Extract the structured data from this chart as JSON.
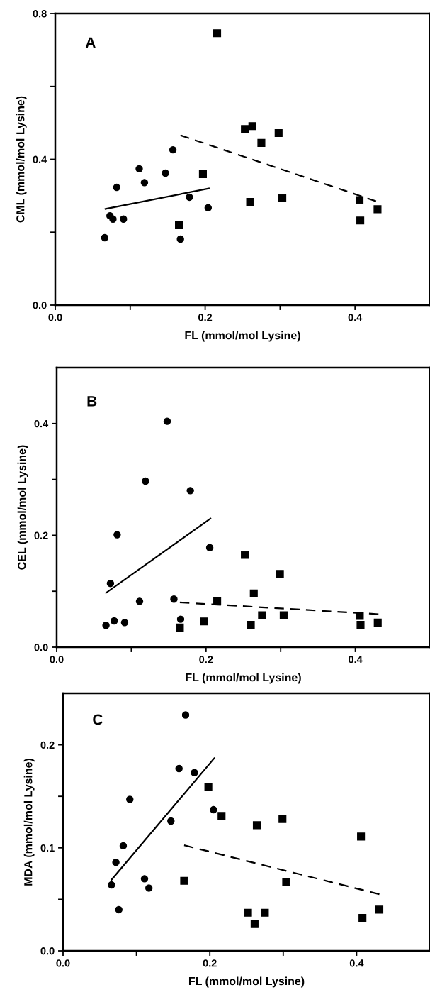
{
  "chart_data": [
    {
      "type": "scatter",
      "annotations": [
        "A"
      ],
      "xlabel": "FL (mmol/mol Lysine)",
      "ylabel": "CML (mmol/mol Lysine)",
      "xlim": [
        0,
        0.5
      ],
      "ylim": [
        0,
        0.8
      ],
      "xticks": [
        {
          "value": 0,
          "label": "0.0"
        },
        {
          "value": 0.1,
          "label": null
        },
        {
          "value": 0.2,
          "label": "0.2"
        },
        {
          "value": 0.3,
          "label": null
        },
        {
          "value": 0.4,
          "label": "0.4"
        }
      ],
      "yticks": [
        {
          "value": 0,
          "label": "0.0"
        },
        {
          "value": 0.2,
          "label": null
        },
        0.4,
        {
          "value": 0.6,
          "label": null
        },
        0.8
      ],
      "grid": false,
      "legend": false,
      "series": [
        {
          "marker": "circle",
          "color": "#000000",
          "x": [
            0.066,
            0.073,
            0.077,
            0.082,
            0.091,
            0.112,
            0.119,
            0.147,
            0.157,
            0.167,
            0.179,
            0.204
          ],
          "values": [
            0.185,
            0.245,
            0.236,
            0.323,
            0.236,
            0.374,
            0.336,
            0.362,
            0.426,
            0.181,
            0.296,
            0.267
          ]
        },
        {
          "marker": "square",
          "color": "#000000",
          "x": [
            0.165,
            0.197,
            0.216,
            0.253,
            0.263,
            0.275,
            0.298,
            0.26,
            0.303,
            0.406,
            0.407,
            0.43
          ],
          "values": [
            0.219,
            0.359,
            0.746,
            0.483,
            0.491,
            0.445,
            0.472,
            0.283,
            0.294,
            0.288,
            0.232,
            0.263
          ]
        },
        {
          "type": "line",
          "marker": "none",
          "line_style": "solid",
          "color": "#000000",
          "x": [
            0.067,
            0.205
          ],
          "values": [
            0.264,
            0.32
          ]
        },
        {
          "type": "line",
          "marker": "none",
          "line_style": "dashed",
          "color": "#000000",
          "x": [
            0.167,
            0.428
          ],
          "values": [
            0.466,
            0.285
          ]
        }
      ]
    },
    {
      "type": "scatter",
      "annotations": [
        "B"
      ],
      "xlabel": "FL (mmol/mol Lysine)",
      "ylabel": "CEL (mmol/mol Lysine)",
      "xlim": [
        0,
        0.5
      ],
      "ylim": [
        0,
        0.5
      ],
      "xticks": [
        {
          "value": 0,
          "label": "0.0"
        },
        {
          "value": 0.1,
          "label": null
        },
        {
          "value": 0.2,
          "label": "0.2"
        },
        {
          "value": 0.3,
          "label": null
        },
        {
          "value": 0.4,
          "label": "0.4"
        }
      ],
      "yticks": [
        {
          "value": 0,
          "label": "0.0"
        },
        {
          "value": 0.1,
          "label": null
        },
        0.2,
        {
          "value": 0.3,
          "label": null
        },
        0.4
      ],
      "grid": false,
      "legend": false,
      "series": [
        {
          "marker": "circle",
          "color": "#000000",
          "x": [
            0.066,
            0.072,
            0.077,
            0.081,
            0.091,
            0.111,
            0.119,
            0.148,
            0.157,
            0.166,
            0.179,
            0.205
          ],
          "values": [
            0.039,
            0.114,
            0.047,
            0.201,
            0.044,
            0.082,
            0.297,
            0.404,
            0.086,
            0.05,
            0.28,
            0.178
          ]
        },
        {
          "marker": "square",
          "color": "#000000",
          "x": [
            0.165,
            0.197,
            0.215,
            0.252,
            0.264,
            0.26,
            0.275,
            0.299,
            0.304,
            0.406,
            0.407,
            0.43
          ],
          "values": [
            0.035,
            0.046,
            0.082,
            0.165,
            0.096,
            0.04,
            0.057,
            0.131,
            0.057,
            0.056,
            0.04,
            0.044
          ]
        },
        {
          "type": "line",
          "marker": "none",
          "line_style": "solid",
          "color": "#000000",
          "x": [
            0.066,
            0.206
          ],
          "values": [
            0.097,
            0.23
          ]
        },
        {
          "type": "line",
          "marker": "none",
          "line_style": "dashed",
          "color": "#000000",
          "x": [
            0.165,
            0.431
          ],
          "values": [
            0.08,
            0.059
          ]
        }
      ]
    },
    {
      "type": "scatter",
      "annotations": [
        "C"
      ],
      "xlabel": "FL (mmol/mol Lysine)",
      "ylabel": "MDA (mmol/mol Lysine)",
      "xlim": [
        0,
        0.5
      ],
      "ylim": [
        0,
        0.25
      ],
      "xticks": [
        {
          "value": 0,
          "label": "0.0"
        },
        {
          "value": 0.1,
          "label": null
        },
        {
          "value": 0.2,
          "label": "0.2"
        },
        {
          "value": 0.3,
          "label": null
        },
        {
          "value": 0.4,
          "label": "0.4"
        }
      ],
      "yticks": [
        {
          "value": 0,
          "label": "0.0"
        },
        {
          "value": 0.05,
          "label": null
        },
        0.1,
        {
          "value": 0.15,
          "label": null
        },
        0.2
      ],
      "grid": false,
      "legend": false,
      "series": [
        {
          "marker": "circle",
          "color": "#000000",
          "x": [
            0.066,
            0.072,
            0.076,
            0.082,
            0.091,
            0.111,
            0.117,
            0.147,
            0.158,
            0.167,
            0.179,
            0.205
          ],
          "values": [
            0.064,
            0.086,
            0.04,
            0.102,
            0.147,
            0.07,
            0.061,
            0.126,
            0.177,
            0.229,
            0.173,
            0.137
          ]
        },
        {
          "marker": "square",
          "color": "#000000",
          "x": [
            0.165,
            0.198,
            0.216,
            0.252,
            0.261,
            0.264,
            0.275,
            0.299,
            0.304,
            0.406,
            0.408,
            0.431
          ],
          "values": [
            0.068,
            0.159,
            0.131,
            0.037,
            0.026,
            0.122,
            0.037,
            0.128,
            0.067,
            0.111,
            0.032,
            0.04
          ]
        },
        {
          "type": "line",
          "marker": "none",
          "line_style": "solid",
          "color": "#000000",
          "x": [
            0.066,
            0.206
          ],
          "values": [
            0.069,
            0.187
          ]
        },
        {
          "type": "line",
          "marker": "none",
          "line_style": "dashed",
          "color": "#000000",
          "x": [
            0.165,
            0.431
          ],
          "values": [
            0.1025,
            0.055
          ]
        }
      ]
    }
  ]
}
